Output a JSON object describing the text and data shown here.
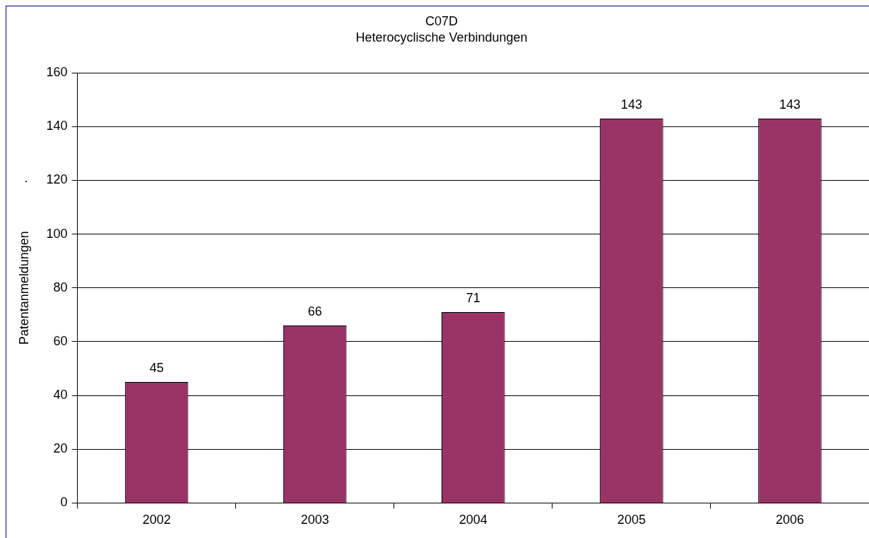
{
  "chart_data": {
    "type": "bar",
    "title": "C07D",
    "subtitle": "Heterocyclische Verbindungen",
    "ylabel": "Patentanmeldungen",
    "categories": [
      "2002",
      "2003",
      "2004",
      "2005",
      "2006"
    ],
    "values": [
      45,
      66,
      71,
      143,
      143
    ],
    "color": "#993366",
    "ylim": [
      0,
      160
    ],
    "yticks": [
      0,
      20,
      40,
      60,
      80,
      100,
      120,
      140,
      160
    ],
    "grid": "y",
    "data_labels": true,
    "legend": false,
    "annotations": [
      "."
    ]
  }
}
